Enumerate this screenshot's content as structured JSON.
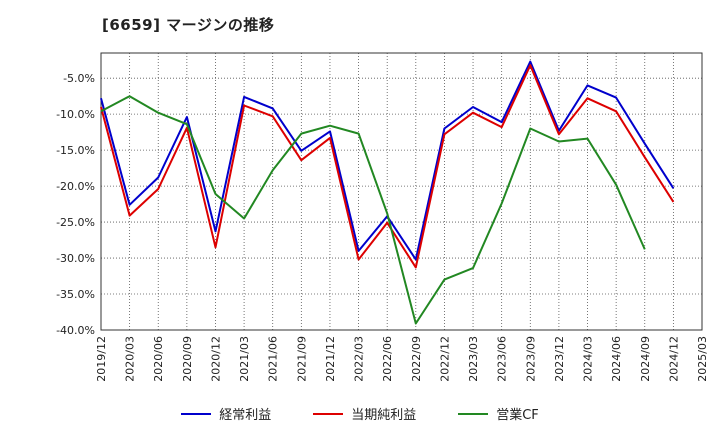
{
  "chart_data": {
    "type": "line",
    "title": "[6659]  マージンの推移",
    "x": [
      "2019/12",
      "2020/03",
      "2020/06",
      "2020/09",
      "2020/12",
      "2021/03",
      "2021/06",
      "2021/09",
      "2021/12",
      "2022/03",
      "2022/06",
      "2022/09",
      "2022/12",
      "2023/03",
      "2023/06",
      "2023/09",
      "2023/12",
      "2024/03",
      "2024/06",
      "2024/09",
      "2024/12",
      "2025/03"
    ],
    "ylim": [
      -40,
      -1.5
    ],
    "yticks": [
      -5,
      -10,
      -15,
      -20,
      -25,
      -30,
      -35,
      -40
    ],
    "ytick_labels": [
      "-5.0%",
      "-10.0%",
      "-15.0%",
      "-20.0%",
      "-25.0%",
      "-30.0%",
      "-35.0%",
      "-40.0%"
    ],
    "grid": true,
    "legend_position": "bottom",
    "series": [
      {
        "name": "経常利益",
        "color": "#0000cc",
        "values": [
          -7.8,
          -22.6,
          -18.8,
          -10.4,
          -26.3,
          -7.6,
          -9.2,
          -15.1,
          -12.4,
          -29.0,
          -24.2,
          -30.2,
          -12.0,
          -9.0,
          -11.1,
          -2.7,
          -12.3,
          -6.0,
          -7.7,
          -14.1,
          -20.3,
          null
        ]
      },
      {
        "name": "当期純利益",
        "color": "#dd0000",
        "values": [
          -9.0,
          -24.1,
          -20.4,
          -11.9,
          -28.5,
          -8.8,
          -10.3,
          -16.4,
          -13.3,
          -30.2,
          -25.1,
          -31.3,
          -12.8,
          -9.8,
          -11.8,
          -3.2,
          -12.8,
          -7.8,
          -9.6,
          -16.0,
          -22.2,
          null
        ]
      },
      {
        "name": "営業CF",
        "color": "#228822",
        "values": [
          -9.6,
          -7.5,
          -9.8,
          -11.4,
          -21.1,
          -24.5,
          -17.8,
          -12.7,
          -11.6,
          -12.7,
          -23.8,
          -39.1,
          -33.0,
          -31.4,
          -22.4,
          -12.0,
          -13.8,
          -13.4,
          -19.8,
          -28.8,
          null,
          null
        ]
      }
    ]
  }
}
